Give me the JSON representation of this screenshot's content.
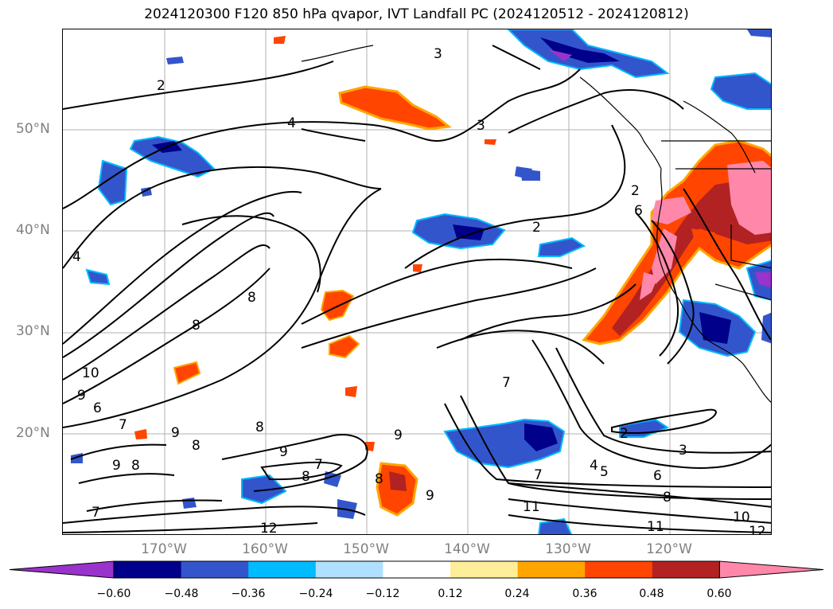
{
  "title": "2024120300 F120 850 hPa qvapor, IVT Landfall PC (2024120512 - 2024120812)",
  "lat_labels": [
    "50°N",
    "40°N",
    "30°N",
    "20°N"
  ],
  "lon_labels": [
    "170°W",
    "160°W",
    "150°W",
    "140°W",
    "130°W",
    "120°W"
  ],
  "colorbar": {
    "colors": [
      "#9933cc",
      "#00008b",
      "#3355cc",
      "#00bbff",
      "#b0e0ff",
      "#ffffff",
      "#ffee99",
      "#ffa500",
      "#ff4500",
      "#b22222",
      "#ff88aa"
    ],
    "tick_labels": [
      "−0.60",
      "−0.48",
      "−0.36",
      "−0.24",
      "−0.12",
      "0.12",
      "0.24",
      "0.36",
      "0.48",
      "0.60"
    ]
  },
  "contour_labels": [
    "2",
    "4",
    "3",
    "3",
    "2",
    "4",
    "8",
    "8",
    "10",
    "9",
    "6",
    "7",
    "9",
    "8",
    "9",
    "8",
    "7",
    "8",
    "8",
    "7",
    "9",
    "9",
    "8",
    "9",
    "7",
    "12",
    "11",
    "7",
    "4",
    "5",
    "6",
    "8",
    "11",
    "10",
    "12",
    "2",
    "3",
    "2",
    "6"
  ],
  "icons": {
    "map": "north-pacific-map",
    "colorbar_ends": "triangle-arrow"
  }
}
